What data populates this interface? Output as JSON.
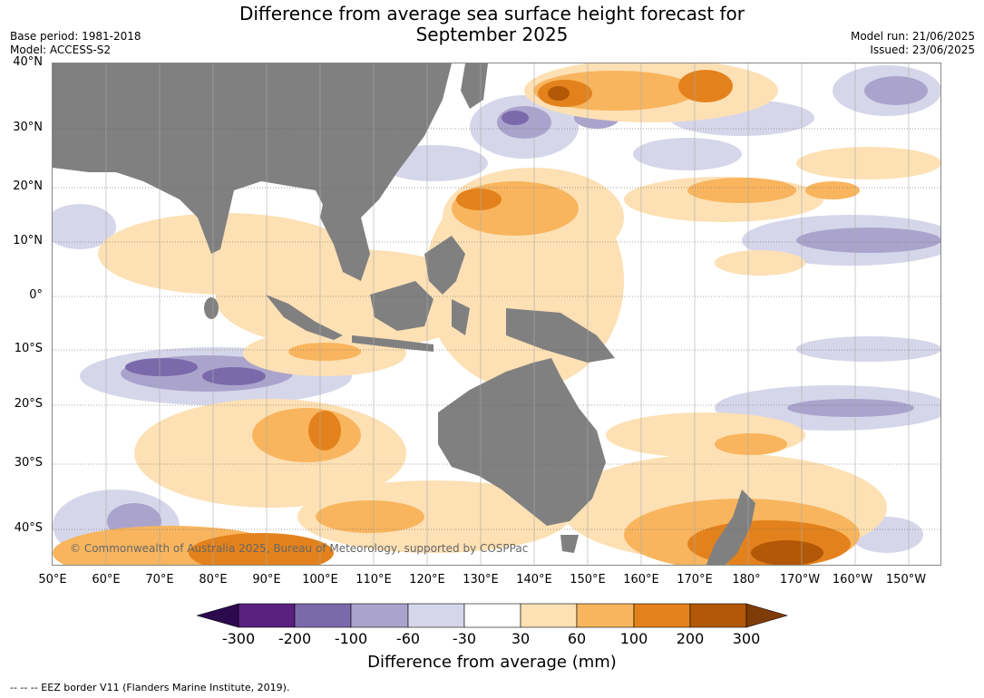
{
  "title_line1": "Difference from average sea surface height forecast for",
  "title_line2": "September 2025",
  "meta_left": {
    "base_period": "Base period: 1981-2018",
    "model": "Model: ACCESS-S2"
  },
  "meta_right": {
    "model_run": "Model run: 21/06/2025",
    "issued": "Issued: 23/06/2025"
  },
  "lat_labels": [
    "40°N",
    "30°N",
    "20°N",
    "10°N",
    "0°",
    "10°S",
    "20°S",
    "30°S",
    "40°S"
  ],
  "lon_labels": [
    "50°E",
    "60°E",
    "70°E",
    "80°E",
    "90°E",
    "100°E",
    "110°E",
    "120°E",
    "130°E",
    "140°E",
    "150°E",
    "160°E",
    "170°E",
    "180°",
    "170°W",
    "160°W",
    "150°W"
  ],
  "copyright": "© Commonwealth of Australia 2025, Bureau of Meteorology, supported by COSPPac",
  "colorbar": {
    "label": "Difference from average (mm)",
    "ticks": [
      "-300",
      "-200",
      "-100",
      "-60",
      "-30",
      "30",
      "60",
      "100",
      "200",
      "300"
    ],
    "colors": [
      "#2d0a4e",
      "#59207f",
      "#7b6aab",
      "#aaa4cc",
      "#d6d6ea",
      "#ffffff",
      "#fde0b4",
      "#f8b55e",
      "#e3821c",
      "#b35806",
      "#7f3b08"
    ],
    "land_color": "#808080"
  },
  "footnote": "--  --  -- EEZ border V11 (Flanders Marine Institute, 2019)."
}
